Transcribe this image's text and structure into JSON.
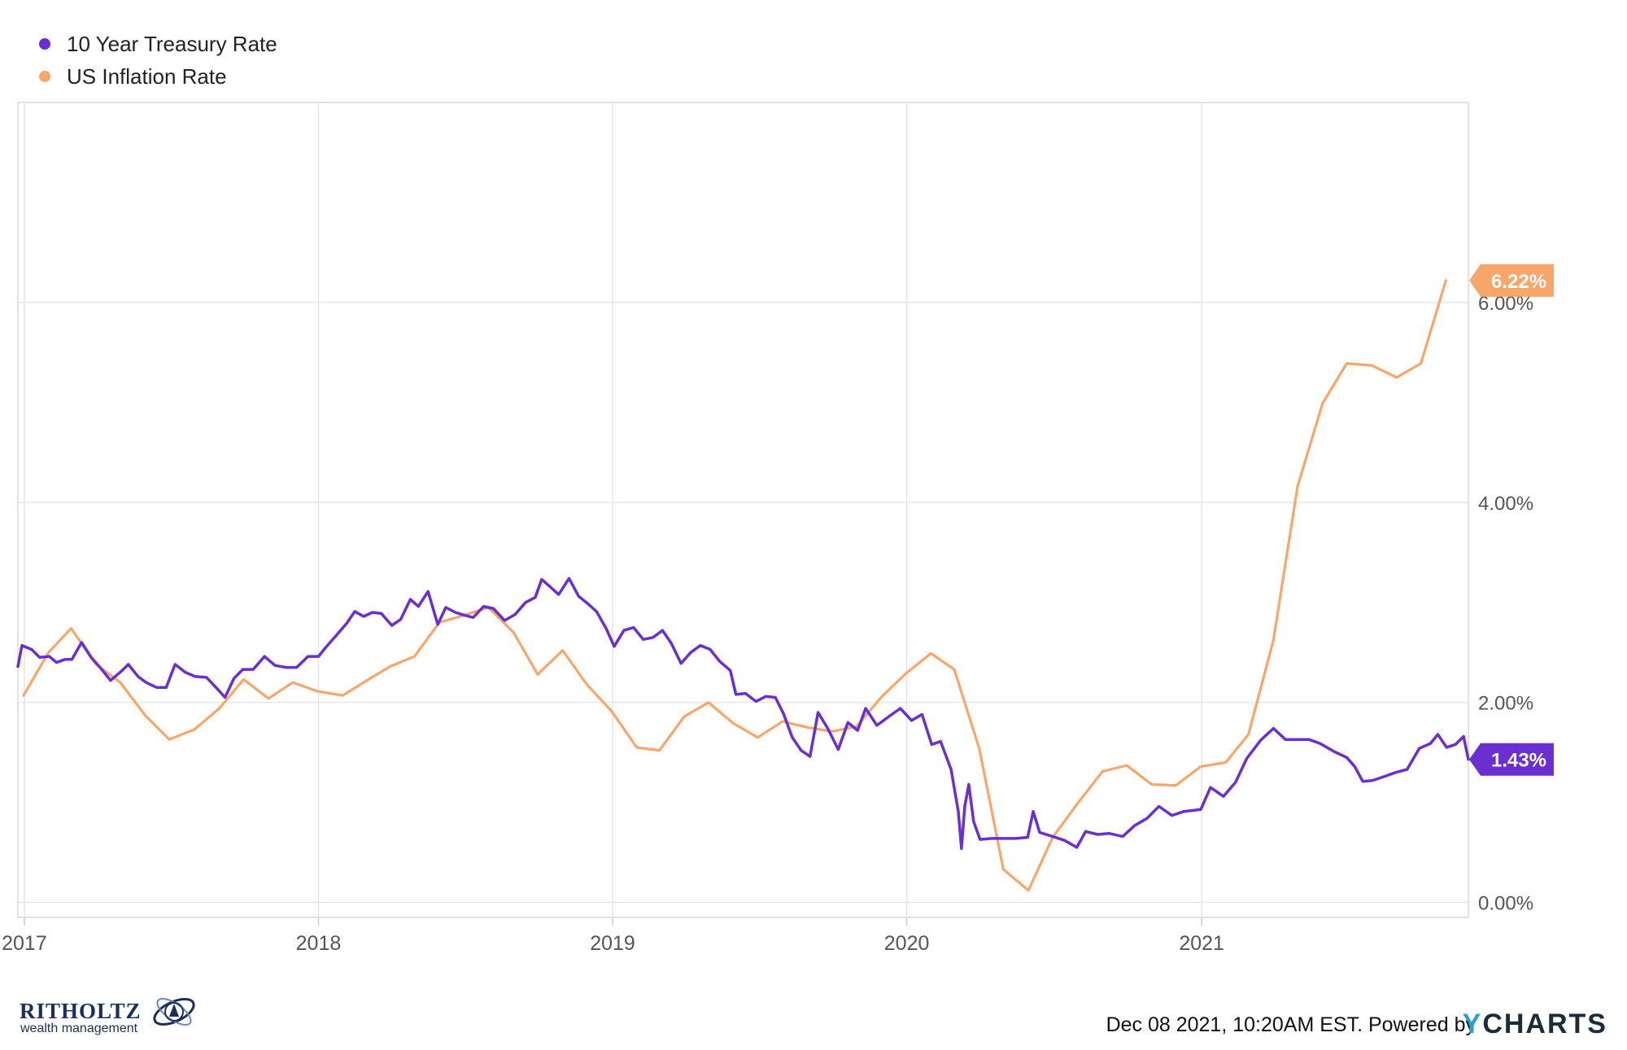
{
  "legend": [
    {
      "label": "10 Year Treasury Rate",
      "color": "#6a2fd1"
    },
    {
      "label": "US Inflation Rate",
      "color": "#f9a66a"
    }
  ],
  "chart_data": {
    "type": "line",
    "x_tick_labels": [
      "2017",
      "2018",
      "2019",
      "2020",
      "2021"
    ],
    "y_tick_labels": [
      "0.00%",
      "2.00%",
      "4.00%",
      "6.00%"
    ],
    "ylim": [
      -0.15,
      8.0
    ],
    "xlim": [
      "2016-12-24",
      "2021-11-28"
    ],
    "grid": true,
    "legend_position": "top-left",
    "series": [
      {
        "name": "10 Year Treasury Rate",
        "color": "#6a2fd1",
        "end_label": "1.43%",
        "points": [
          [
            "2016-12-24",
            2.36
          ],
          [
            "2016-12-29",
            2.57
          ],
          [
            "2017-01-10",
            2.53
          ],
          [
            "2017-01-20",
            2.45
          ],
          [
            "2017-02-01",
            2.46
          ],
          [
            "2017-02-10",
            2.4
          ],
          [
            "2017-02-20",
            2.43
          ],
          [
            "2017-03-01",
            2.43
          ],
          [
            "2017-03-13",
            2.6
          ],
          [
            "2017-03-25",
            2.45
          ],
          [
            "2017-04-05",
            2.35
          ],
          [
            "2017-04-18",
            2.22
          ],
          [
            "2017-05-01",
            2.31
          ],
          [
            "2017-05-10",
            2.38
          ],
          [
            "2017-05-22",
            2.26
          ],
          [
            "2017-06-01",
            2.2
          ],
          [
            "2017-06-14",
            2.15
          ],
          [
            "2017-06-26",
            2.15
          ],
          [
            "2017-07-07",
            2.38
          ],
          [
            "2017-07-20",
            2.3
          ],
          [
            "2017-08-01",
            2.26
          ],
          [
            "2017-08-15",
            2.25
          ],
          [
            "2017-08-28",
            2.14
          ],
          [
            "2017-09-07",
            2.05
          ],
          [
            "2017-09-18",
            2.24
          ],
          [
            "2017-09-29",
            2.33
          ],
          [
            "2017-10-12",
            2.33
          ],
          [
            "2017-10-26",
            2.46
          ],
          [
            "2017-11-08",
            2.37
          ],
          [
            "2017-11-22",
            2.35
          ],
          [
            "2017-12-05",
            2.35
          ],
          [
            "2017-12-19",
            2.46
          ],
          [
            "2018-01-01",
            2.46
          ],
          [
            "2018-01-10",
            2.55
          ],
          [
            "2018-01-22",
            2.66
          ],
          [
            "2018-02-05",
            2.79
          ],
          [
            "2018-02-15",
            2.91
          ],
          [
            "2018-02-26",
            2.86
          ],
          [
            "2018-03-09",
            2.9
          ],
          [
            "2018-03-20",
            2.89
          ],
          [
            "2018-04-02",
            2.77
          ],
          [
            "2018-04-13",
            2.83
          ],
          [
            "2018-04-25",
            3.03
          ],
          [
            "2018-05-05",
            2.96
          ],
          [
            "2018-05-17",
            3.11
          ],
          [
            "2018-05-29",
            2.78
          ],
          [
            "2018-06-08",
            2.95
          ],
          [
            "2018-06-20",
            2.9
          ],
          [
            "2018-07-02",
            2.87
          ],
          [
            "2018-07-12",
            2.85
          ],
          [
            "2018-07-25",
            2.96
          ],
          [
            "2018-08-06",
            2.94
          ],
          [
            "2018-08-20",
            2.82
          ],
          [
            "2018-09-02",
            2.88
          ],
          [
            "2018-09-15",
            3.0
          ],
          [
            "2018-09-27",
            3.05
          ],
          [
            "2018-10-05",
            3.23
          ],
          [
            "2018-10-15",
            3.16
          ],
          [
            "2018-10-26",
            3.08
          ],
          [
            "2018-11-08",
            3.24
          ],
          [
            "2018-11-20",
            3.06
          ],
          [
            "2018-12-01",
            2.99
          ],
          [
            "2018-12-12",
            2.91
          ],
          [
            "2018-12-24",
            2.74
          ],
          [
            "2019-01-03",
            2.56
          ],
          [
            "2019-01-15",
            2.72
          ],
          [
            "2019-01-27",
            2.75
          ],
          [
            "2019-02-08",
            2.63
          ],
          [
            "2019-02-20",
            2.65
          ],
          [
            "2019-03-04",
            2.72
          ],
          [
            "2019-03-15",
            2.59
          ],
          [
            "2019-03-27",
            2.39
          ],
          [
            "2019-04-08",
            2.5
          ],
          [
            "2019-04-20",
            2.57
          ],
          [
            "2019-05-02",
            2.53
          ],
          [
            "2019-05-14",
            2.41
          ],
          [
            "2019-05-27",
            2.32
          ],
          [
            "2019-06-03",
            2.08
          ],
          [
            "2019-06-15",
            2.09
          ],
          [
            "2019-06-28",
            2.01
          ],
          [
            "2019-07-10",
            2.06
          ],
          [
            "2019-07-22",
            2.05
          ],
          [
            "2019-08-01",
            1.89
          ],
          [
            "2019-08-12",
            1.65
          ],
          [
            "2019-08-23",
            1.52
          ],
          [
            "2019-09-03",
            1.46
          ],
          [
            "2019-09-13",
            1.9
          ],
          [
            "2019-09-25",
            1.74
          ],
          [
            "2019-10-08",
            1.53
          ],
          [
            "2019-10-20",
            1.8
          ],
          [
            "2019-11-01",
            1.72
          ],
          [
            "2019-11-11",
            1.94
          ],
          [
            "2019-11-25",
            1.77
          ],
          [
            "2019-12-10",
            1.86
          ],
          [
            "2019-12-24",
            1.94
          ],
          [
            "2020-01-07",
            1.82
          ],
          [
            "2020-01-20",
            1.88
          ],
          [
            "2020-02-01",
            1.58
          ],
          [
            "2020-02-12",
            1.61
          ],
          [
            "2020-02-25",
            1.33
          ],
          [
            "2020-03-05",
            0.91
          ],
          [
            "2020-03-09",
            0.54
          ],
          [
            "2020-03-13",
            0.96
          ],
          [
            "2020-03-18",
            1.18
          ],
          [
            "2020-03-24",
            0.81
          ],
          [
            "2020-04-01",
            0.63
          ],
          [
            "2020-04-15",
            0.64
          ],
          [
            "2020-04-30",
            0.64
          ],
          [
            "2020-05-15",
            0.64
          ],
          [
            "2020-05-30",
            0.65
          ],
          [
            "2020-06-06",
            0.91
          ],
          [
            "2020-06-14",
            0.7
          ],
          [
            "2020-06-30",
            0.66
          ],
          [
            "2020-07-15",
            0.62
          ],
          [
            "2020-07-30",
            0.55
          ],
          [
            "2020-08-10",
            0.71
          ],
          [
            "2020-08-25",
            0.68
          ],
          [
            "2020-09-08",
            0.69
          ],
          [
            "2020-09-25",
            0.66
          ],
          [
            "2020-10-10",
            0.77
          ],
          [
            "2020-10-25",
            0.84
          ],
          [
            "2020-11-09",
            0.96
          ],
          [
            "2020-11-25",
            0.87
          ],
          [
            "2020-12-10",
            0.91
          ],
          [
            "2020-12-31",
            0.93
          ],
          [
            "2021-01-12",
            1.15
          ],
          [
            "2021-01-28",
            1.06
          ],
          [
            "2021-02-12",
            1.2
          ],
          [
            "2021-02-26",
            1.44
          ],
          [
            "2021-03-15",
            1.62
          ],
          [
            "2021-03-31",
            1.74
          ],
          [
            "2021-04-15",
            1.63
          ],
          [
            "2021-04-30",
            1.63
          ],
          [
            "2021-05-14",
            1.63
          ],
          [
            "2021-05-28",
            1.59
          ],
          [
            "2021-06-14",
            1.51
          ],
          [
            "2021-06-30",
            1.45
          ],
          [
            "2021-07-10",
            1.36
          ],
          [
            "2021-07-20",
            1.21
          ],
          [
            "2021-08-01",
            1.22
          ],
          [
            "2021-08-16",
            1.26
          ],
          [
            "2021-08-30",
            1.3
          ],
          [
            "2021-09-13",
            1.33
          ],
          [
            "2021-09-28",
            1.54
          ],
          [
            "2021-10-12",
            1.59
          ],
          [
            "2021-10-21",
            1.68
          ],
          [
            "2021-11-01",
            1.55
          ],
          [
            "2021-11-12",
            1.58
          ],
          [
            "2021-11-22",
            1.66
          ],
          [
            "2021-11-28",
            1.43
          ]
        ]
      },
      {
        "name": "US Inflation Rate",
        "color": "#f9a66a",
        "end_label": "6.22%",
        "points": [
          [
            "2016-12-31",
            2.07
          ],
          [
            "2017-01-31",
            2.5
          ],
          [
            "2017-02-28",
            2.74
          ],
          [
            "2017-03-31",
            2.38
          ],
          [
            "2017-04-30",
            2.2
          ],
          [
            "2017-05-31",
            1.87
          ],
          [
            "2017-06-30",
            1.63
          ],
          [
            "2017-07-31",
            1.73
          ],
          [
            "2017-08-31",
            1.94
          ],
          [
            "2017-09-30",
            2.23
          ],
          [
            "2017-10-31",
            2.04
          ],
          [
            "2017-11-30",
            2.2
          ],
          [
            "2017-12-31",
            2.11
          ],
          [
            "2018-01-31",
            2.07
          ],
          [
            "2018-02-28",
            2.21
          ],
          [
            "2018-03-31",
            2.36
          ],
          [
            "2018-04-30",
            2.46
          ],
          [
            "2018-05-31",
            2.8
          ],
          [
            "2018-06-30",
            2.87
          ],
          [
            "2018-07-31",
            2.95
          ],
          [
            "2018-08-31",
            2.7
          ],
          [
            "2018-09-30",
            2.28
          ],
          [
            "2018-10-31",
            2.52
          ],
          [
            "2018-11-30",
            2.18
          ],
          [
            "2018-12-31",
            1.91
          ],
          [
            "2019-01-31",
            1.55
          ],
          [
            "2019-02-28",
            1.52
          ],
          [
            "2019-03-31",
            1.86
          ],
          [
            "2019-04-30",
            2.0
          ],
          [
            "2019-05-31",
            1.79
          ],
          [
            "2019-06-30",
            1.65
          ],
          [
            "2019-07-31",
            1.81
          ],
          [
            "2019-08-31",
            1.75
          ],
          [
            "2019-09-30",
            1.71
          ],
          [
            "2019-10-31",
            1.76
          ],
          [
            "2019-11-30",
            2.05
          ],
          [
            "2019-12-31",
            2.29
          ],
          [
            "2020-01-31",
            2.49
          ],
          [
            "2020-02-29",
            2.33
          ],
          [
            "2020-03-31",
            1.54
          ],
          [
            "2020-04-30",
            0.33
          ],
          [
            "2020-05-31",
            0.12
          ],
          [
            "2020-06-30",
            0.65
          ],
          [
            "2020-07-31",
            0.99
          ],
          [
            "2020-08-31",
            1.31
          ],
          [
            "2020-09-30",
            1.37
          ],
          [
            "2020-10-31",
            1.18
          ],
          [
            "2020-11-30",
            1.17
          ],
          [
            "2020-12-31",
            1.36
          ],
          [
            "2021-01-31",
            1.4
          ],
          [
            "2021-02-28",
            1.68
          ],
          [
            "2021-03-31",
            2.62
          ],
          [
            "2021-04-30",
            4.16
          ],
          [
            "2021-05-31",
            4.99
          ],
          [
            "2021-06-30",
            5.39
          ],
          [
            "2021-07-31",
            5.37
          ],
          [
            "2021-08-31",
            5.25
          ],
          [
            "2021-09-30",
            5.39
          ],
          [
            "2021-10-31",
            6.22
          ]
        ]
      }
    ]
  },
  "footer": {
    "timestamp": "Dec 08 2021, 10:20AM EST. Powered by",
    "brand_y": "Y",
    "brand_rest": "CHARTS"
  },
  "logo": {
    "name": "RITHOLTZ",
    "subtitle": "wealth management"
  }
}
